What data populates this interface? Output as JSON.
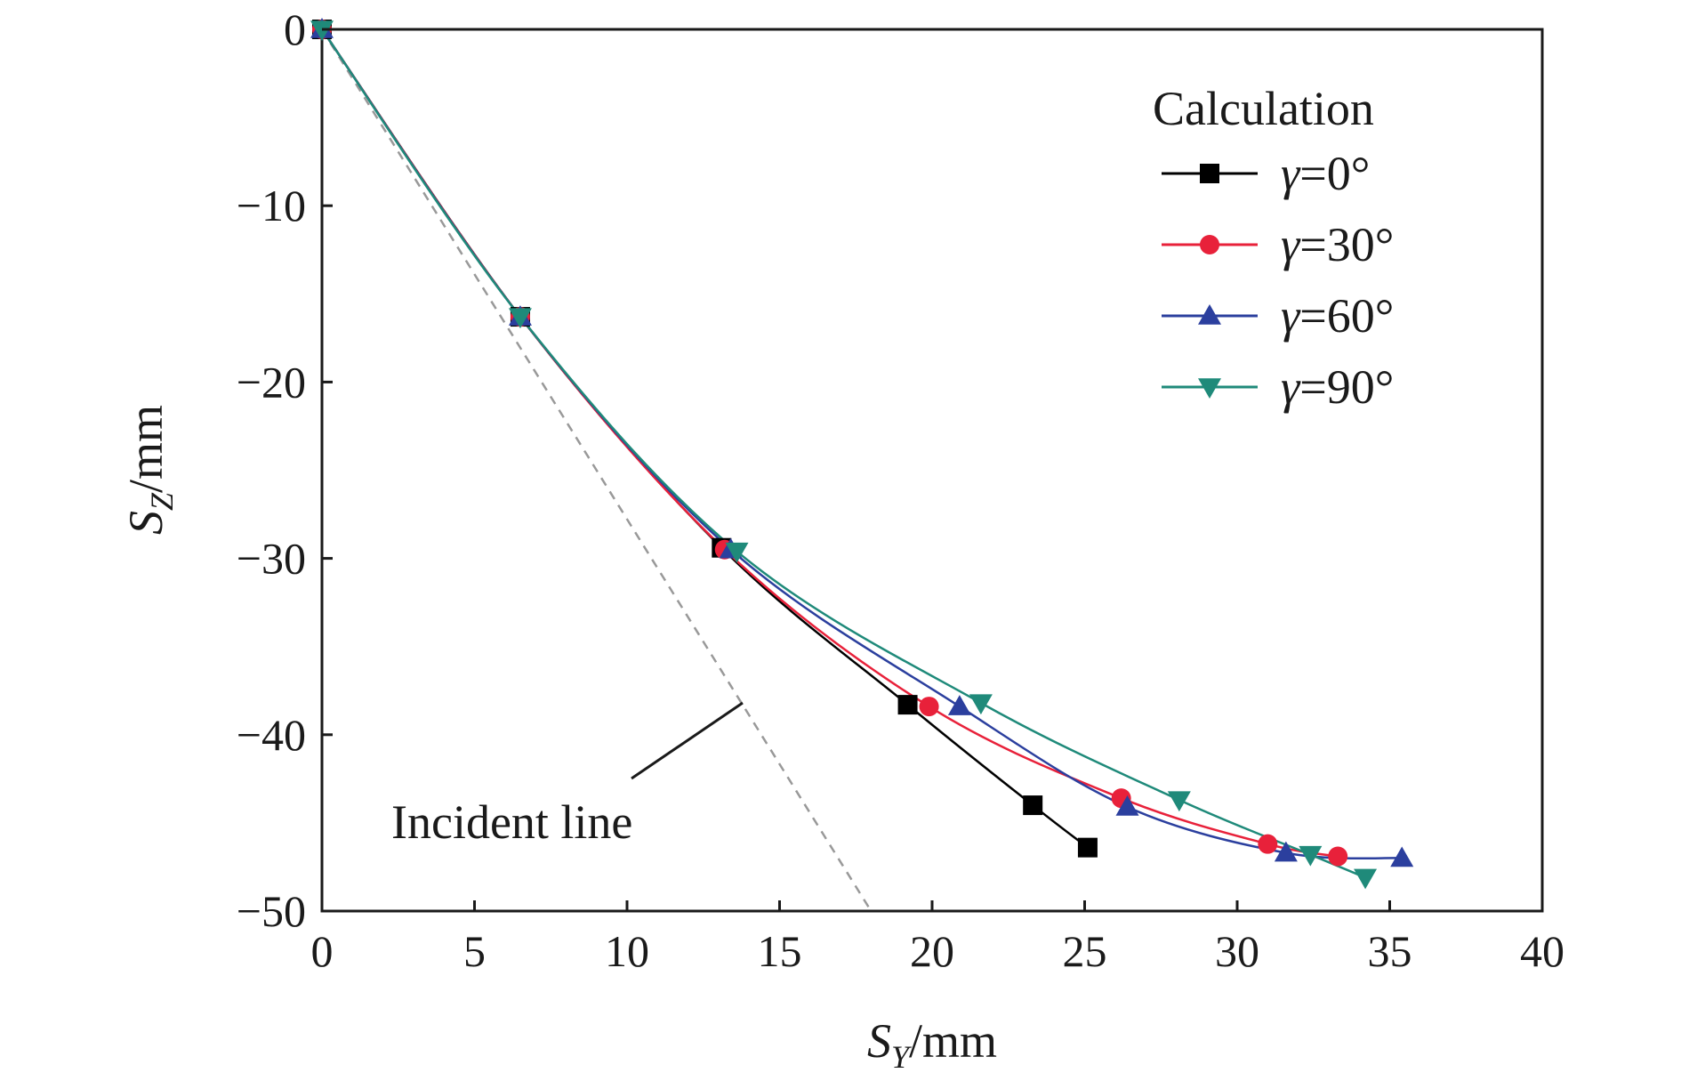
{
  "chart_data": {
    "type": "line",
    "xlabel": {
      "symbol": "S",
      "sub": "Y",
      "unit": "/mm"
    },
    "ylabel": {
      "symbol": "S",
      "sub": "Z",
      "unit": "/mm"
    },
    "xlim": [
      0,
      40
    ],
    "ylim": [
      -50,
      0
    ],
    "xticks": [
      0,
      5,
      10,
      15,
      20,
      25,
      30,
      35,
      40
    ],
    "yticks": [
      0,
      -10,
      -20,
      -30,
      -40,
      -50
    ],
    "xtick_labels": [
      "0",
      "5",
      "10",
      "15",
      "20",
      "25",
      "30",
      "35",
      "40"
    ],
    "ytick_labels": [
      "0",
      "−10",
      "−20",
      "−30",
      "−40",
      "−50"
    ],
    "grid": false,
    "legend": {
      "title": "Calculation",
      "placement": "top-right",
      "entries": [
        {
          "symbol": "γ",
          "text": "=0°"
        },
        {
          "symbol": "γ",
          "text": "=30°"
        },
        {
          "symbol": "γ",
          "text": "=60°"
        },
        {
          "symbol": "γ",
          "text": "=90°"
        }
      ]
    },
    "series": [
      {
        "name": "γ=0°",
        "color": "#000000",
        "marker": "square",
        "x": [
          0,
          6.5,
          13.1,
          19.2,
          23.3,
          25.1
        ],
        "y": [
          0,
          -16.3,
          -29.4,
          -38.3,
          -44.0,
          -46.4
        ]
      },
      {
        "name": "γ=30°",
        "color": "#e8213a",
        "marker": "circle",
        "x": [
          0,
          6.5,
          13.2,
          19.9,
          26.2,
          31.0,
          33.3
        ],
        "y": [
          0,
          -16.3,
          -29.5,
          -38.4,
          -43.6,
          -46.2,
          -46.9
        ]
      },
      {
        "name": "γ=60°",
        "color": "#2b3f9e",
        "marker": "triangle-up",
        "x": [
          0,
          6.5,
          13.4,
          20.9,
          26.4,
          31.6,
          35.4
        ],
        "y": [
          0,
          -16.3,
          -29.5,
          -38.4,
          -44.1,
          -46.7,
          -47.0
        ]
      },
      {
        "name": "γ=90°",
        "color": "#1f8a7a",
        "marker": "triangle-down",
        "x": [
          0,
          6.5,
          13.6,
          21.6,
          28.1,
          32.4,
          34.2
        ],
        "y": [
          0,
          -16.3,
          -29.6,
          -38.2,
          -43.7,
          -46.8,
          -48.1
        ]
      }
    ],
    "incident_line": {
      "color": "#999999",
      "style": "dashed",
      "x": [
        0,
        18.0
      ],
      "y": [
        0,
        -50
      ]
    },
    "annotations": [
      {
        "text": "Incident line",
        "points_to": [
          13.7,
          -38.1
        ]
      }
    ]
  }
}
